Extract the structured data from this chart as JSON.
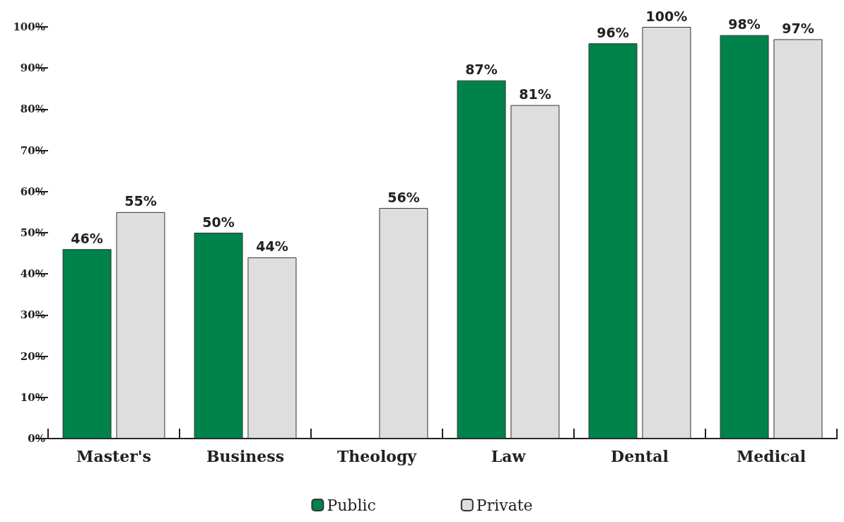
{
  "chart_data": {
    "type": "bar",
    "categories": [
      "Master's",
      "Business",
      "Theology",
      "Law",
      "Dental",
      "Medical"
    ],
    "series": [
      {
        "name": "Public",
        "color": "#00834a",
        "values": [
          46,
          50,
          null,
          87,
          96,
          98
        ],
        "value_labels": [
          "46%",
          "50%",
          null,
          "87%",
          "96%",
          "98%"
        ]
      },
      {
        "name": "Private",
        "color": "#dedede",
        "values": [
          55,
          44,
          56,
          81,
          100,
          97
        ],
        "value_labels": [
          "55%",
          "44%",
          "56%",
          "81%",
          "100%",
          "97%"
        ]
      }
    ],
    "ylim": [
      0,
      100
    ],
    "yticks": [
      {
        "value": 0,
        "label": "0%"
      },
      {
        "value": 10,
        "label": "10%"
      },
      {
        "value": 20,
        "label": "20%"
      },
      {
        "value": 30,
        "label": "30%"
      },
      {
        "value": 40,
        "label": "40%"
      },
      {
        "value": 50,
        "label": "50%"
      },
      {
        "value": 60,
        "label": "60%"
      },
      {
        "value": 70,
        "label": "70%"
      },
      {
        "value": 80,
        "label": "80%"
      },
      {
        "value": 90,
        "label": "90%"
      },
      {
        "value": 100,
        "label": "100%"
      }
    ],
    "grid": false,
    "legend": "bottom"
  }
}
